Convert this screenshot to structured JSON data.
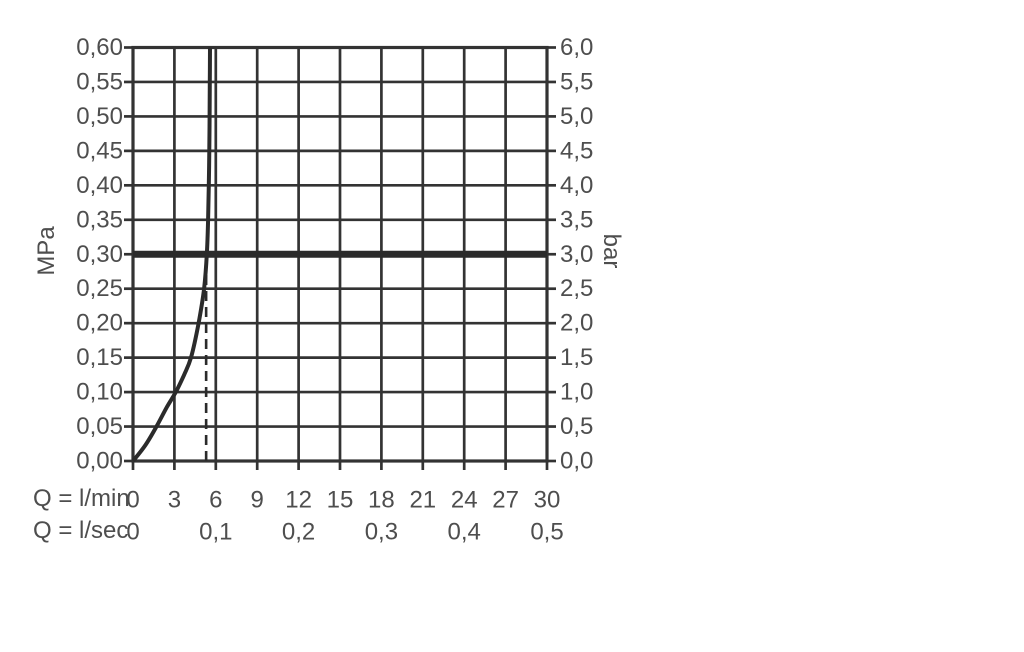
{
  "colors": {
    "background": "#ffffff",
    "grid_line": "#333333",
    "curve": "#2b2b2b",
    "reference_line": "#2b2b2b",
    "text": "#4e4e4e"
  },
  "chart_data": {
    "type": "line",
    "title": "",
    "grid": true,
    "x_axis_lmin": {
      "unit_label": "Q = l/min",
      "ticks": [
        "0",
        "3",
        "6",
        "9",
        "12",
        "15",
        "18",
        "21",
        "24",
        "27",
        "30"
      ],
      "range": [
        0,
        30
      ]
    },
    "x_axis_lsec": {
      "unit_label": "Q = l/sec",
      "ticks": [
        "0",
        "0,1",
        "0,2",
        "0,3",
        "0,4",
        "0,5"
      ],
      "range": [
        0,
        0.5
      ]
    },
    "y_axis_left": {
      "unit_label": "MPa",
      "ticks": [
        "0,60",
        "0,55",
        "0,50",
        "0,45",
        "0,40",
        "0,35",
        "0,30",
        "0,25",
        "0,20",
        "0,15",
        "0,10",
        "0,05",
        "0,00"
      ],
      "range": [
        0,
        0.6
      ]
    },
    "y_axis_right": {
      "unit_label": "bar",
      "ticks": [
        "6,0",
        "5,5",
        "5,0",
        "4,5",
        "4,0",
        "3,5",
        "3,0",
        "2,5",
        "2,0",
        "1,5",
        "1,0",
        "0,5",
        "0,0"
      ],
      "range": [
        0,
        6
      ]
    },
    "reference_line": {
      "mpa": 0.3,
      "bar": 3.0
    },
    "dashed_guide": {
      "x_lmin": 5.3,
      "top_mpa": 0.27
    },
    "series": [
      {
        "name": "pressure-flow-curve",
        "points_lmin_mpa": [
          [
            0,
            0
          ],
          [
            0.9,
            0.023
          ],
          [
            1.7,
            0.05
          ],
          [
            2.45,
            0.078
          ],
          [
            3.1,
            0.1
          ],
          [
            3.7,
            0.125
          ],
          [
            4.2,
            0.15
          ],
          [
            4.75,
            0.2
          ],
          [
            5.15,
            0.25
          ],
          [
            5.35,
            0.3
          ],
          [
            5.44,
            0.35
          ],
          [
            5.49,
            0.4
          ],
          [
            5.53,
            0.45
          ],
          [
            5.55,
            0.5
          ],
          [
            5.565,
            0.55
          ],
          [
            5.58,
            0.6
          ]
        ]
      }
    ]
  }
}
